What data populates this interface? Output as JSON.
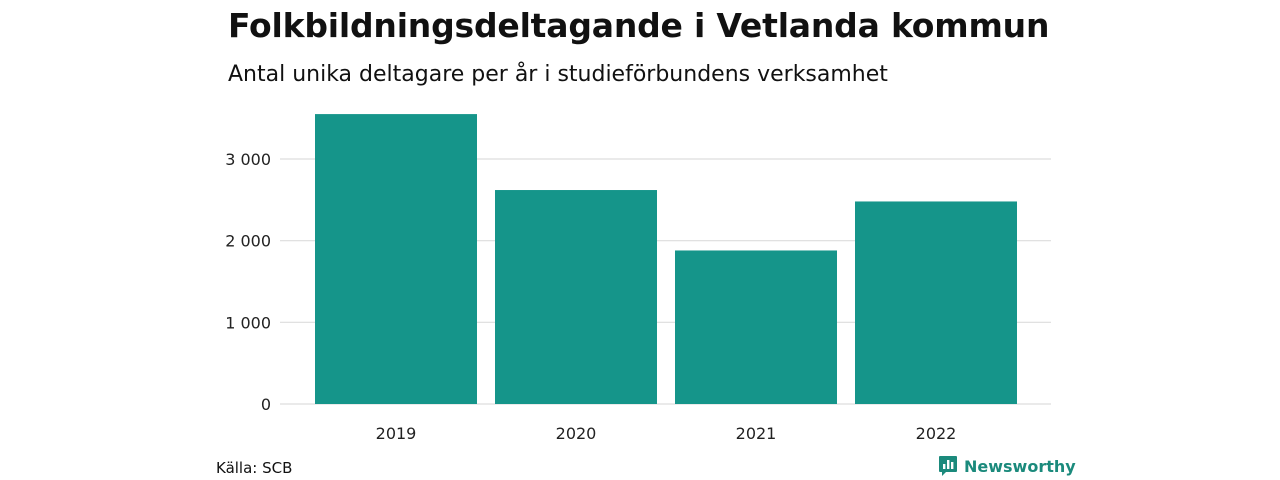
{
  "header": {
    "title": "Folkbildningsdeltagande i Vetlanda kommun",
    "subtitle": "Antal unika deltagare per år i studieförbundens verksamhet"
  },
  "footer": {
    "source": "Källa: SCB",
    "brand": "Newsworthy",
    "brand_icon": "bar-chart-speech-bubble-icon",
    "brand_color": "#1b8a7c"
  },
  "colors": {
    "bar": "#15958a",
    "grid": "#dddddd"
  },
  "chart_data": {
    "type": "bar",
    "categories": [
      "2019",
      "2020",
      "2021",
      "2022"
    ],
    "values": [
      3550,
      2620,
      1880,
      2480
    ],
    "yticks": [
      0,
      1000,
      2000,
      3000
    ],
    "ytick_labels": [
      "0",
      "1 000",
      "2 000",
      "3 000"
    ],
    "ylim": [
      0,
      3600
    ],
    "grid": true,
    "legend": "none"
  }
}
